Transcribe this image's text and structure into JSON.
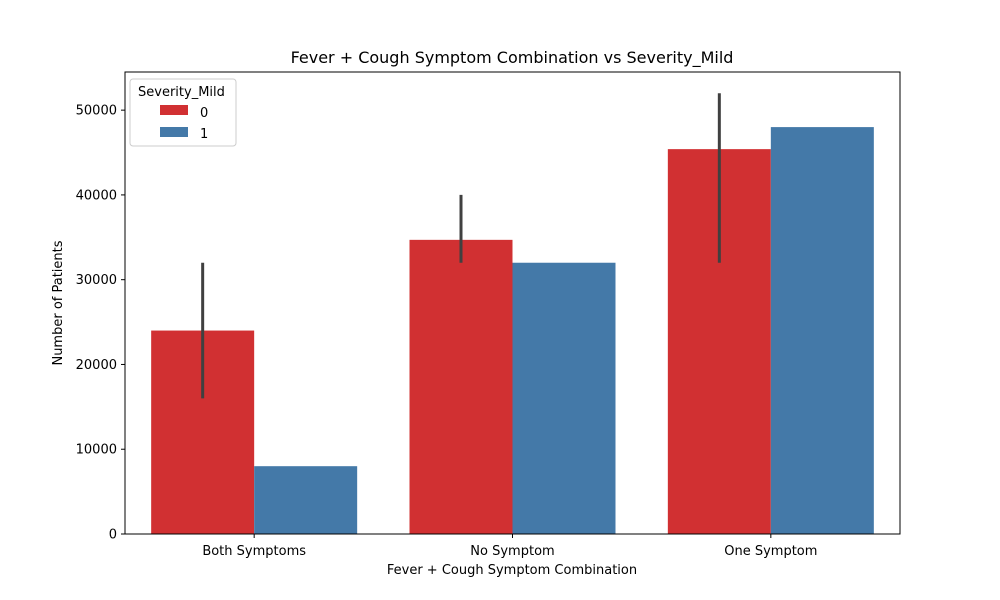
{
  "chart_data": {
    "type": "bar",
    "title": "Fever + Cough Symptom Combination vs Severity_Mild",
    "xlabel": "Fever + Cough Symptom Combination",
    "ylabel": "Number of Patients",
    "categories": [
      "Both Symptoms",
      "No Symptom",
      "One Symptom"
    ],
    "series": [
      {
        "name": "0",
        "values": [
          24000,
          34700,
          45400
        ],
        "error_low": [
          16000,
          32000,
          32000
        ],
        "error_high": [
          32000,
          40000,
          52000
        ],
        "color": "#d13032"
      },
      {
        "name": "1",
        "values": [
          8000,
          32000,
          48000
        ],
        "color": "#4479a8"
      }
    ],
    "yticks": [
      0,
      10000,
      20000,
      30000,
      40000,
      50000
    ],
    "ylim": [
      0,
      54500
    ],
    "grid": false,
    "legend": {
      "title": "Severity_Mild",
      "placement": "top-left"
    },
    "errorbar_color": "#404040"
  }
}
